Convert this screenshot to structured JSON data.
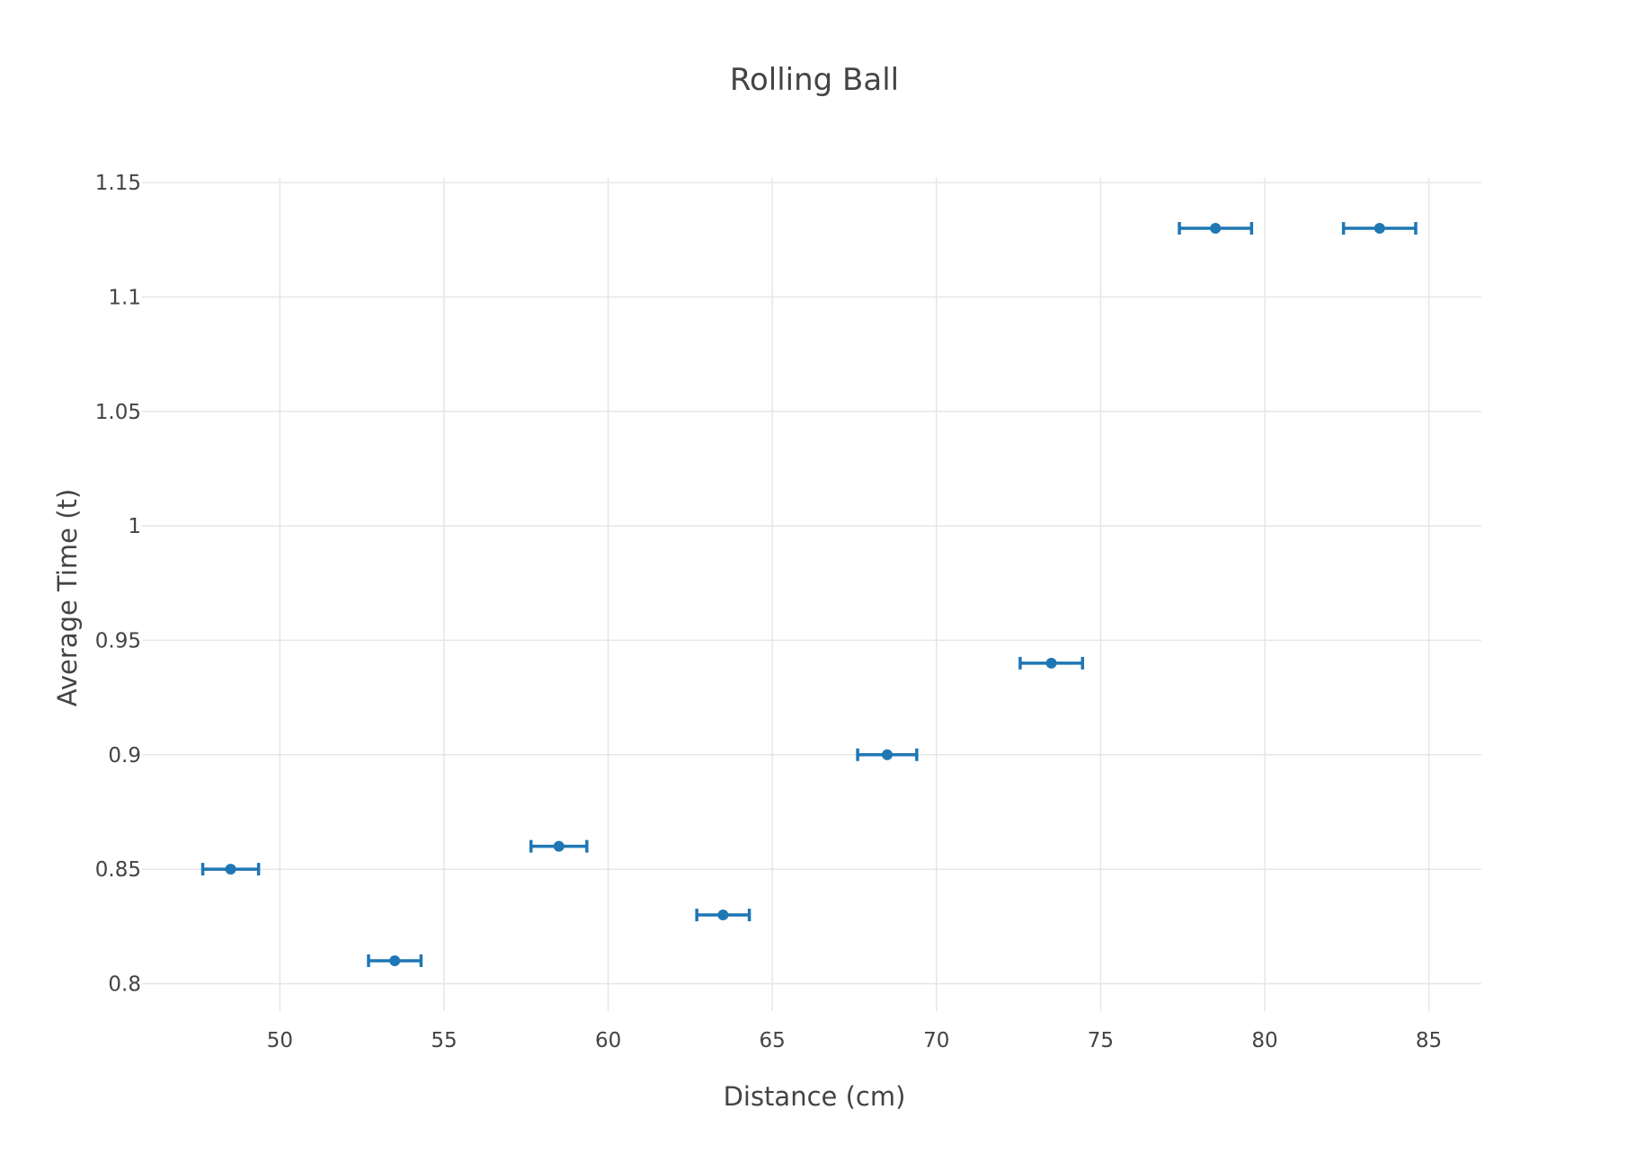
{
  "chart_data": {
    "type": "scatter",
    "title": "Rolling Ball",
    "xlabel": "Distance (cm)",
    "ylabel": "Average Time (t)",
    "xlim": [
      45.8,
      86.6
    ],
    "ylim": [
      0.788,
      1.152
    ],
    "xticks": [
      50,
      55,
      60,
      65,
      70,
      75,
      80,
      85
    ],
    "yticks": [
      0.8,
      0.85,
      0.9,
      0.95,
      1,
      1.05,
      1.1,
      1.15
    ],
    "xtick_labels": [
      "50",
      "55",
      "60",
      "65",
      "70",
      "75",
      "80",
      "85"
    ],
    "ytick_labels": [
      "0.8",
      "0.85",
      "0.9",
      "0.95",
      "1",
      "1.05",
      "1.1",
      "1.15"
    ],
    "grid": true,
    "color": "#1f77b4",
    "series": [
      {
        "x": [
          48.5,
          53.5,
          58.5,
          63.5,
          68.5,
          73.5,
          78.5,
          83.5
        ],
        "y": [
          0.85,
          0.81,
          0.86,
          0.83,
          0.9,
          0.94,
          1.13,
          1.13
        ],
        "x_error": [
          0.85,
          0.8,
          0.85,
          0.8,
          0.9,
          0.95,
          1.1,
          1.1
        ]
      }
    ]
  }
}
